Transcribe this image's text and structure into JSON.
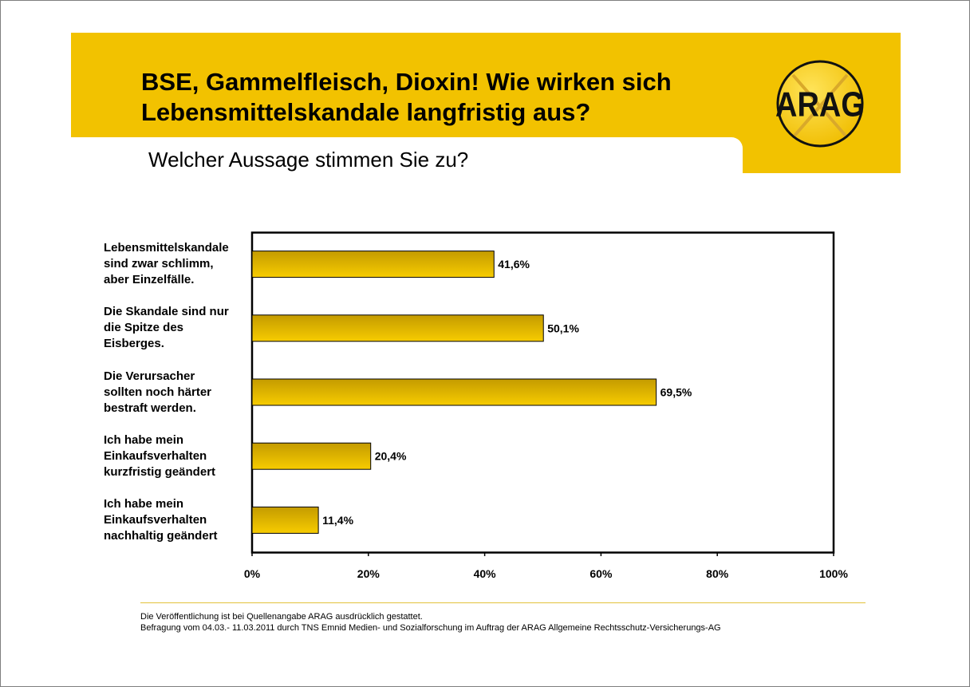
{
  "header": {
    "title_line1": "BSE, Gammelfleisch, Dioxin! Wie wirken sich",
    "title_line2": "Lebensmittelskandale langfristig aus?",
    "subtitle": "Welcher Aussage stimmen Sie zu?",
    "logo_text": "ARAG"
  },
  "colors": {
    "brand_yellow": "#f2c200",
    "bar_top": "#c49b00",
    "bar_bottom": "#f7cc00"
  },
  "chart_data": {
    "type": "bar",
    "orientation": "horizontal",
    "categories": [
      "Lebensmittelskandale sind zwar schlimm, aber Einzelfälle.",
      "Die Skandale sind nur die Spitze des Eisberges.",
      "Die Verursacher sollten noch härter bestraft werden.",
      "Ich habe mein Einkaufsverhalten kurzfristig geändert",
      "Ich habe mein Einkaufsverhalten nachhaltig geändert"
    ],
    "category_lines": [
      [
        "Lebensmittelskandale",
        "sind zwar schlimm,",
        "aber Einzelfälle."
      ],
      [
        "Die Skandale sind nur",
        "die Spitze des",
        "Eisberges."
      ],
      [
        "Die Verursacher",
        "sollten noch härter",
        "bestraft werden."
      ],
      [
        "Ich habe mein",
        "Einkaufsverhalten",
        "kurzfristig geändert"
      ],
      [
        "Ich habe mein",
        "Einkaufsverhalten",
        "nachhaltig geändert"
      ]
    ],
    "values": [
      41.6,
      50.1,
      69.5,
      20.4,
      11.4
    ],
    "data_labels": [
      "41,6%",
      "50,1%",
      "69,5%",
      "20,4%",
      "11,4%"
    ],
    "xlim": [
      0,
      100
    ],
    "x_ticks": [
      0,
      20,
      40,
      60,
      80,
      100
    ],
    "x_tick_labels": [
      "0%",
      "20%",
      "40%",
      "60%",
      "80%",
      "100%"
    ],
    "grid": false,
    "legend": "none"
  },
  "footer": {
    "line1": "Die Veröffentlichung ist bei Quellenangabe ARAG ausdrücklich gestattet.",
    "line2": "Befragung vom 04.03.- 11.03.2011 durch TNS Emnid Medien- und Sozialforschung im Auftrag der ARAG Allgemeine Rechtsschutz-Versicherungs-AG"
  }
}
